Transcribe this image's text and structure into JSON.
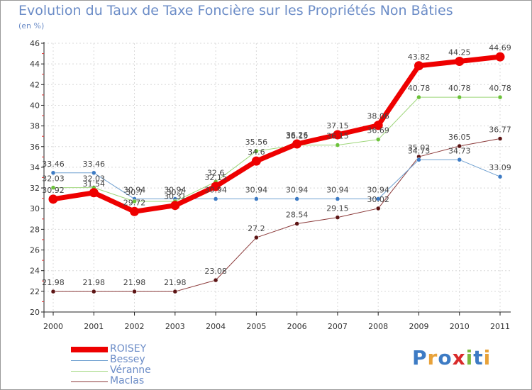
{
  "title": "Evolution du Taux de Taxe Foncière sur les Propriétés Non Bâties",
  "subtitle": "(en %)",
  "logo": {
    "text": "Proxiti",
    "colors": [
      "#3d7bc4",
      "#e8a23a",
      "#3d7bc4",
      "#d92a2a",
      "#7cb83d",
      "#3d7bc4",
      "#e8a23a"
    ]
  },
  "chart_data": {
    "type": "line",
    "title": "Evolution du Taux de Taxe Foncière sur les Propriétés Non Bâties",
    "ylabel": "(en %)",
    "xlabel": "",
    "ylim": [
      20,
      46
    ],
    "yticks": [
      20,
      22,
      24,
      26,
      28,
      30,
      32,
      34,
      36,
      38,
      40,
      42,
      44,
      46
    ],
    "grid": true,
    "categories": [
      "2000",
      "2001",
      "2002",
      "2003",
      "2004",
      "2005",
      "2006",
      "2007",
      "2008",
      "2009",
      "2010",
      "2011"
    ],
    "series": [
      {
        "name": "Maclas",
        "color": "#8b3a3a",
        "dot": "#5c1414",
        "width": 1,
        "values": [
          21.98,
          21.98,
          21.98,
          21.98,
          23.08,
          27.2,
          28.54,
          29.15,
          30.02,
          35.02,
          36.05,
          36.77
        ],
        "labels": [
          "21.98",
          "21.98",
          "21.98",
          "21.98",
          "23.08",
          "27.2",
          "28.54",
          "29.15",
          "30.02",
          "35.02",
          "36.05",
          "36.77"
        ]
      },
      {
        "name": "Bessey",
        "color": "#6fa0d0",
        "dot": "#3d7bc4",
        "width": 1,
        "values": [
          33.46,
          33.46,
          30.94,
          30.94,
          30.94,
          30.94,
          30.94,
          30.94,
          30.94,
          34.73,
          34.73,
          33.09
        ],
        "labels": [
          "33.46",
          "33.46",
          "30.94",
          "30.94",
          "30.94",
          "30.94",
          "30.94",
          "30.94",
          "30.94",
          "34.73",
          "34.73",
          "33.09"
        ]
      },
      {
        "name": "Véranne",
        "color": "#9ed67a",
        "dot": "#6cc23a",
        "width": 1,
        "values": [
          32.03,
          32.03,
          30.7,
          30.7,
          32.6,
          35.56,
          36.15,
          36.15,
          36.69,
          40.78,
          40.78,
          40.78
        ],
        "labels": [
          "32.03",
          "32.03",
          "30.7",
          "30.7",
          "32.6",
          "35.56",
          "36.15",
          "36.15",
          "36.69",
          "40.78",
          "40.78",
          "40.78"
        ]
      },
      {
        "name": "ROISEY",
        "color": "#ee0000",
        "dot": "#ee0000",
        "width": 7,
        "values": [
          30.92,
          31.54,
          29.72,
          30.31,
          32.15,
          34.6,
          36.26,
          37.15,
          38.06,
          43.82,
          44.25,
          44.69
        ],
        "labels": [
          "30.92",
          "31.54",
          "29.72",
          "30.31",
          "32.15",
          "34.6",
          "36.26",
          "37.15",
          "38.06",
          "43.82",
          "44.25",
          "44.69"
        ]
      }
    ],
    "legend": {
      "position": "bottom-left",
      "order": [
        "ROISEY",
        "Bessey",
        "Véranne",
        "Maclas"
      ]
    }
  }
}
